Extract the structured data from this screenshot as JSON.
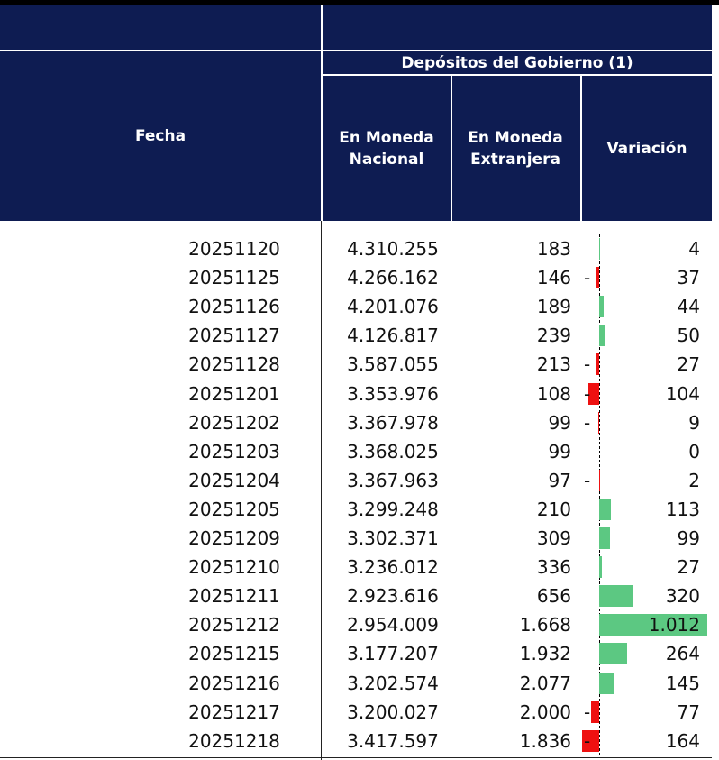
{
  "header": {
    "fecha": "Fecha",
    "group": "Depósitos del Gobierno (1)",
    "columns": [
      "En Moneda Nacional",
      "En Moneda Extranjera",
      "Variación"
    ]
  },
  "table": {
    "rows": [
      {
        "fecha": "20251120",
        "nacional": "4.310.255",
        "extranjera": "183",
        "variacion": {
          "value": 4,
          "label": "4"
        }
      },
      {
        "fecha": "20251125",
        "nacional": "4.266.162",
        "extranjera": "146",
        "variacion": {
          "value": -37,
          "sign": "-",
          "label": "37"
        }
      },
      {
        "fecha": "20251126",
        "nacional": "4.201.076",
        "extranjera": "189",
        "variacion": {
          "value": 44,
          "label": "44"
        }
      },
      {
        "fecha": "20251127",
        "nacional": "4.126.817",
        "extranjera": "239",
        "variacion": {
          "value": 50,
          "label": "50"
        }
      },
      {
        "fecha": "20251128",
        "nacional": "3.587.055",
        "extranjera": "213",
        "variacion": {
          "value": -27,
          "sign": "-",
          "label": "27"
        }
      },
      {
        "fecha": "20251201",
        "nacional": "3.353.976",
        "extranjera": "108",
        "variacion": {
          "value": -104,
          "sign": "-",
          "label": "104"
        }
      },
      {
        "fecha": "20251202",
        "nacional": "3.367.978",
        "extranjera": "99",
        "variacion": {
          "value": -9,
          "sign": "-",
          "label": "9"
        }
      },
      {
        "fecha": "20251203",
        "nacional": "3.368.025",
        "extranjera": "99",
        "variacion": {
          "value": 0,
          "label": "0"
        }
      },
      {
        "fecha": "20251204",
        "nacional": "3.367.963",
        "extranjera": "97",
        "variacion": {
          "value": -2,
          "sign": "-",
          "label": "2"
        }
      },
      {
        "fecha": "20251205",
        "nacional": "3.299.248",
        "extranjera": "210",
        "variacion": {
          "value": 113,
          "label": "113"
        }
      },
      {
        "fecha": "20251209",
        "nacional": "3.302.371",
        "extranjera": "309",
        "variacion": {
          "value": 99,
          "label": "99"
        }
      },
      {
        "fecha": "20251210",
        "nacional": "3.236.012",
        "extranjera": "336",
        "variacion": {
          "value": 27,
          "label": "27"
        }
      },
      {
        "fecha": "20251211",
        "nacional": "2.923.616",
        "extranjera": "656",
        "variacion": {
          "value": 320,
          "label": "320"
        }
      },
      {
        "fecha": "20251212",
        "nacional": "2.954.009",
        "extranjera": "1.668",
        "variacion": {
          "value": 1012,
          "label": "1.012"
        }
      },
      {
        "fecha": "20251215",
        "nacional": "3.177.207",
        "extranjera": "1.932",
        "variacion": {
          "value": 264,
          "label": "264"
        }
      },
      {
        "fecha": "20251216",
        "nacional": "3.202.574",
        "extranjera": "2.077",
        "variacion": {
          "value": 145,
          "label": "145"
        }
      },
      {
        "fecha": "20251217",
        "nacional": "3.200.027",
        "extranjera": "2.000",
        "variacion": {
          "value": -77,
          "sign": "-",
          "label": "77"
        }
      },
      {
        "fecha": "20251218",
        "nacional": "3.417.597",
        "extranjera": "1.836",
        "variacion": {
          "value": -164,
          "sign": "-",
          "label": "164"
        }
      }
    ]
  }
}
